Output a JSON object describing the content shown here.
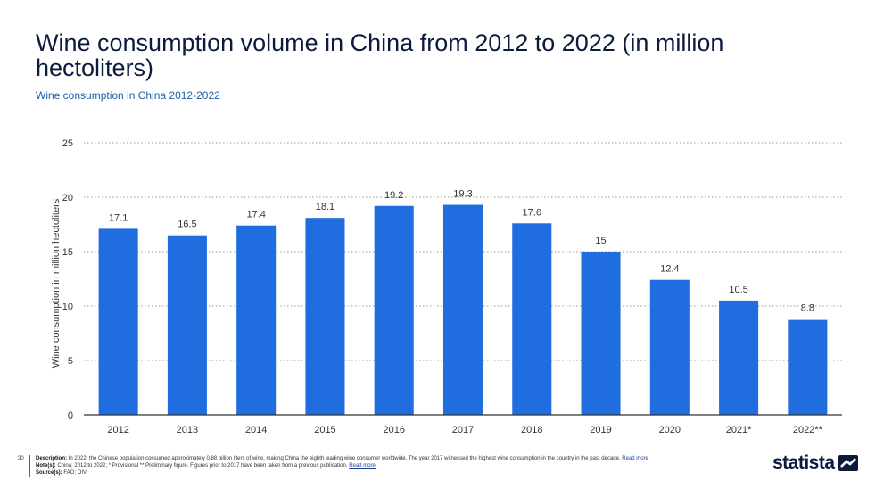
{
  "title": "Wine consumption volume in China from 2012 to 2022 (in million hectoliters)",
  "subtitle": "Wine consumption in China 2012-2022",
  "colors": {
    "bar": "#1f6ddf",
    "grid": "#9a9a9a",
    "axis": "#333333",
    "title": "#0b1b3d",
    "subtitle": "#1f5fa8"
  },
  "footer": {
    "page_number": "30",
    "description_label": "Description:",
    "description_text": "In 2022, the Chinese population consumed approximately 0.88 billion liters of wine, making China the eighth leading wine consumer worldwide. The year 2017 witnessed the highest wine consumption in the country in the past decade.",
    "description_link": "Read more",
    "notes_label": "Note(s):",
    "notes_text": "China; 2012 to 2022; * Provisional ** Preliminary figure. Figures prior to 2017 have been taken from a previous publication.",
    "notes_link": "Read more",
    "sources_label": "Source(s):",
    "sources_text": "FAO; OIV"
  },
  "logo": {
    "text": "statista",
    "icon": "statista-logo-icon"
  },
  "chart_data": {
    "type": "bar",
    "categories": [
      "2012",
      "2013",
      "2014",
      "2015",
      "2016",
      "2017",
      "2018",
      "2019",
      "2020",
      "2021*",
      "2022**"
    ],
    "values": [
      17.1,
      16.5,
      17.4,
      18.1,
      19.2,
      19.3,
      17.6,
      15,
      12.4,
      10.5,
      8.8
    ],
    "value_labels": [
      "17.1",
      "16.5",
      "17.4",
      "18.1",
      "19.2",
      "19.3",
      "17.6",
      "15",
      "12.4",
      "10.5",
      "8.8"
    ],
    "ylabel": "Wine consumption in million hectoliters",
    "xlabel": "",
    "ylim": [
      0,
      25
    ],
    "yticks": [
      "0",
      "5",
      "10",
      "15",
      "20",
      "25"
    ],
    "grid": true,
    "legend": "none"
  }
}
